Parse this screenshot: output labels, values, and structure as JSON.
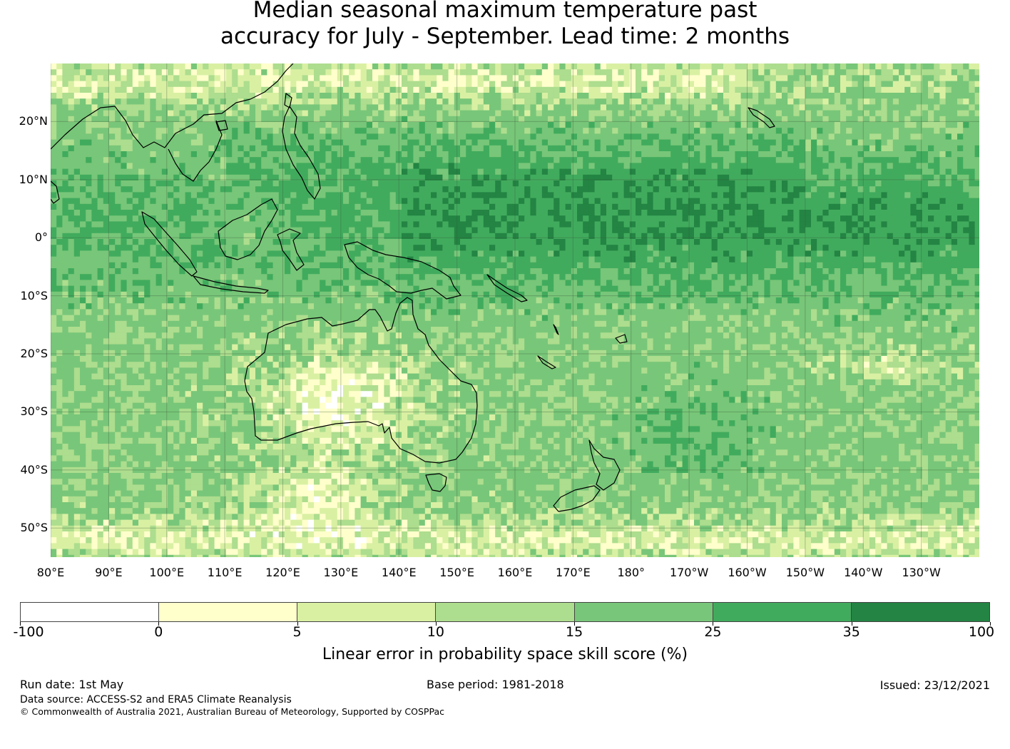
{
  "title_line1": "Median seasonal maximum temperature past",
  "title_line2": "accuracy for July - September. Lead time: 2 months",
  "map": {
    "lat_labels": [
      "20°N",
      "10°N",
      "0°",
      "10°S",
      "20°S",
      "30°S",
      "40°S",
      "50°S"
    ],
    "lon_labels": [
      "80°E",
      "90°E",
      "100°E",
      "110°E",
      "120°E",
      "130°E",
      "140°E",
      "150°E",
      "160°E",
      "170°E",
      "180°",
      "170°W",
      "160°W",
      "150°W",
      "140°W",
      "130°W"
    ],
    "ocean_default_color": "#74c476",
    "coastline_color": "#000000"
  },
  "colorbar": {
    "tick_labels": [
      "-100",
      "0",
      "5",
      "10",
      "15",
      "25",
      "35",
      "100"
    ],
    "colors": [
      "#ffffff",
      "#ffffcc",
      "#d9f0a3",
      "#addd8e",
      "#78c679",
      "#41ab5d",
      "#238443"
    ],
    "label": "Linear error in probability space skill score (%)"
  },
  "footer": {
    "run_date": "Run date: 1st May",
    "base_period": "Base period: 1981-2018",
    "issued": "Issued: 23/12/2021",
    "data_source": "Data source: ACCESS-S2 and ERA5 Climate Reanalysis",
    "copyright": "© Commonwealth of Australia 2021, Australian Bureau of Meteorology, Supported by COSPPac"
  }
}
